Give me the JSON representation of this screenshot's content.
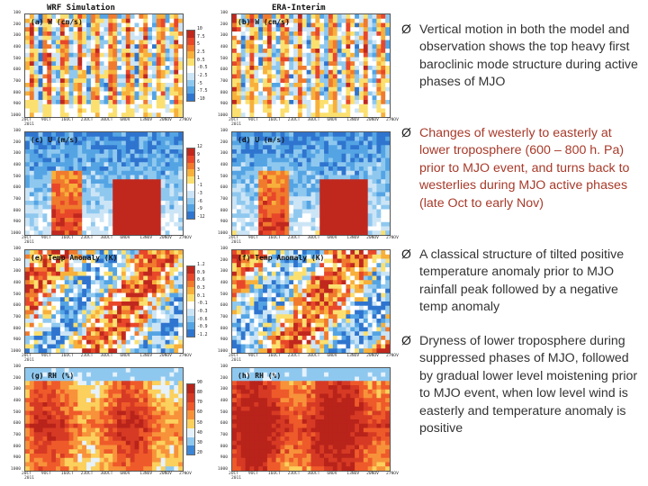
{
  "figure": {
    "column_titles": [
      "WRF Simulation",
      "ERA-Interim"
    ],
    "y_ticks": [
      "100",
      "200",
      "300",
      "400",
      "500",
      "600",
      "700",
      "800",
      "900",
      "1000"
    ],
    "x_ticks_left": [
      "20CT",
      "9OCT",
      "16OCT",
      "23OCT",
      "30OCT",
      "6NOV",
      "13NOV",
      "20NOV",
      "27NOV"
    ],
    "x_ticks_right": [
      "2OCT",
      "9OCT",
      "16OCT",
      "23OCT",
      "30OCT",
      "6NOV",
      "13NOV",
      "20NOV",
      "27NOV"
    ],
    "year_label": "2011",
    "rows": [
      {
        "left_label": "(a) W (cm/s)",
        "right_label": "(b) W (cm/s)",
        "colorbar": [
          "10",
          "7.5",
          "5",
          "2.5",
          "0.5",
          "-0.5",
          "-2.5",
          "-5",
          "-7.5",
          "-10"
        ],
        "palette": [
          "#c0281e",
          "#e8472a",
          "#f07a2d",
          "#f7b03b",
          "#fbe070",
          "#ffffff",
          "#cce5f6",
          "#8fc8ef",
          "#54a4e4",
          "#2f75cf"
        ]
      },
      {
        "left_label": "(c) U (m/s)",
        "right_label": "(d) U (m/s)",
        "colorbar": [
          "12",
          "9",
          "6",
          "3",
          "1",
          "-1",
          "-3",
          "-6",
          "-9",
          "-12"
        ],
        "palette": [
          "#c0281e",
          "#e8472a",
          "#f07a2d",
          "#f7b03b",
          "#fbe070",
          "#ffffff",
          "#cce5f6",
          "#8fc8ef",
          "#54a4e4",
          "#2f75cf"
        ]
      },
      {
        "left_label": "(e) Temp Anomaly (K)",
        "right_label": "(f) Temp Anomaly (K)",
        "colorbar": [
          "1.2",
          "0.9",
          "0.6",
          "0.3",
          "0.1",
          "-0.1",
          "-0.3",
          "-0.6",
          "-0.9",
          "-1.2"
        ],
        "palette": [
          "#c0281e",
          "#e8472a",
          "#f07a2d",
          "#f7b03b",
          "#fbe070",
          "#ffffff",
          "#cce5f6",
          "#8fc8ef",
          "#54a4e4",
          "#2f75cf"
        ]
      },
      {
        "left_label": "(g) RH (%)",
        "right_label": "(h) RH (%)",
        "colorbar": [
          "90",
          "80",
          "70",
          "60",
          "50",
          "40",
          "30",
          "20"
        ],
        "palette": [
          "#b8231a",
          "#d63a24",
          "#ef5a2a",
          "#f7923a",
          "#fbd05c",
          "#e6f2fb",
          "#8fc8ef",
          "#3d86d6"
        ]
      }
    ]
  },
  "bullets": [
    {
      "text": "Vertical motion in both the model and observation shows the top heavy first baroclinic mode structure during active phases of MJO",
      "color": "normal"
    },
    {
      "text": "Changes of westerly to easterly at lower troposphere (600 – 800 h. Pa) prior to MJO event, and turns back to westerlies during MJO active phases (late Oct to early Nov)",
      "color": "red"
    },
    {
      "text": "A classical structure of tilted positive temperature anomaly prior to MJO rainfall peak followed by a negative temp anomaly",
      "color": "normal"
    },
    {
      "text": "Dryness of lower troposphere during suppressed phases of MJO, followed by gradual lower level moistening prior to MJO event, when low level wind is easterly and temperature anomaly is positive",
      "color": "normal"
    }
  ],
  "bullet_marker": "Ø"
}
